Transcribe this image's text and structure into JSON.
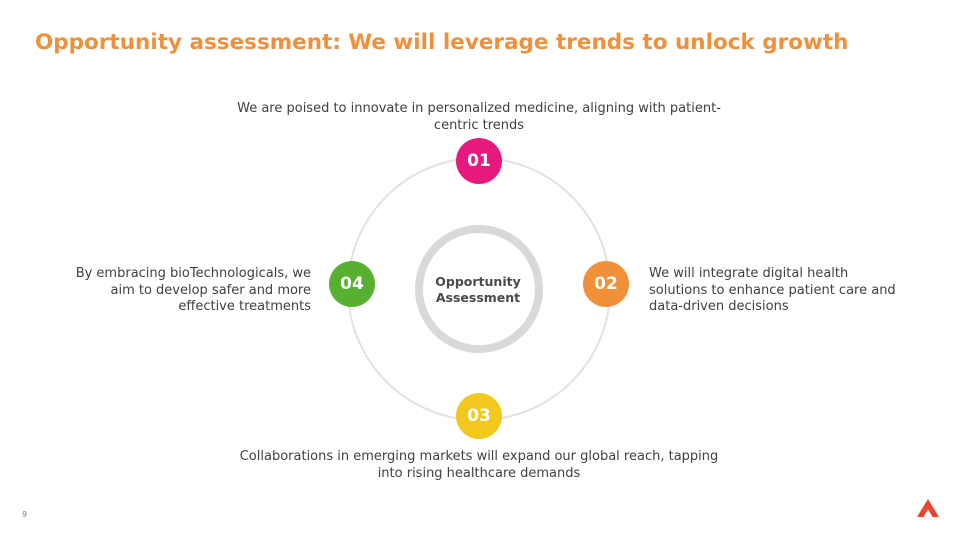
{
  "title": "Opportunity assessment: We will leverage trends to unlock growth",
  "center": {
    "line1": "Opportunity",
    "line2": "Assessment"
  },
  "items": [
    {
      "number": "01",
      "color": "#e8197d",
      "text": "We are poised to innovate in personalized medicine, aligning with patient-centric trends"
    },
    {
      "number": "02",
      "color": "#f0913a",
      "text": "We will integrate digital health solutions to enhance patient care and data-driven decisions"
    },
    {
      "number": "03",
      "color": "#f2c81d",
      "text": "Collaborations in emerging markets will expand our global reach, tapping into rising healthcare demands"
    },
    {
      "number": "04",
      "color": "#58b030",
      "text": "By embracing bioTechnologicals, we aim to develop safer and more effective treatments"
    }
  ],
  "page_number": "9",
  "colors": {
    "title": "#f0913a",
    "ring": "#e2e2e2",
    "center_ring": "#d9d9d9",
    "logo": "#e8442e"
  }
}
